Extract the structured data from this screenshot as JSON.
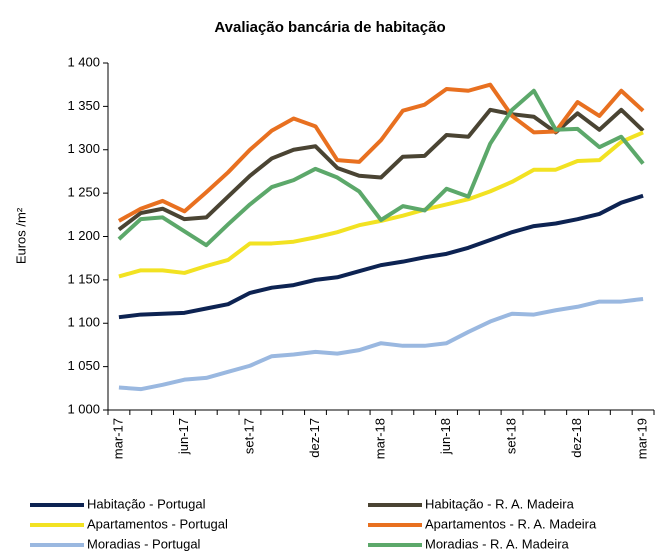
{
  "chart_data": {
    "type": "line",
    "title": "Avaliação bancária de habitação",
    "y_label": "Euros /m²",
    "categories": [
      "mar-17",
      null,
      null,
      "jun-17",
      null,
      null,
      "set-17",
      null,
      null,
      "dez-17",
      null,
      null,
      "mar-18",
      null,
      null,
      "jun-18",
      null,
      null,
      "set-18",
      null,
      null,
      "dez-18",
      null,
      null,
      "mar-19"
    ],
    "series": [
      {
        "name": "Habitação - Portugal",
        "color": "#0d2352",
        "values": [
          1107,
          1110,
          1111,
          1112,
          1117,
          1122,
          1135,
          1141,
          1144,
          1150,
          1153,
          1160,
          1167,
          1171,
          1176,
          1180,
          1187,
          1196,
          1205,
          1212,
          1215,
          1220,
          1226,
          1239,
          1247
        ]
      },
      {
        "name": "Habitação - R. A. Madeira",
        "color": "#4a4433",
        "values": [
          1208,
          1227,
          1232,
          1220,
          1222,
          1246,
          1270,
          1290,
          1300,
          1304,
          1279,
          1270,
          1268,
          1292,
          1293,
          1317,
          1315,
          1346,
          1341,
          1338,
          1320,
          1342,
          1323,
          1346,
          1322
        ]
      },
      {
        "name": "Apartamentos - Portugal",
        "color": "#f2e222",
        "values": [
          1154,
          1161,
          1161,
          1158,
          1166,
          1173,
          1192,
          1192,
          1194,
          1199,
          1205,
          1213,
          1218,
          1224,
          1231,
          1237,
          1243,
          1252,
          1263,
          1277,
          1277,
          1287,
          1288,
          1309,
          1320
        ]
      },
      {
        "name": "Apartamentos - R. A. Madeira",
        "color": "#e87020",
        "values": [
          1218,
          1232,
          1241,
          1229,
          1251,
          1274,
          1300,
          1322,
          1336,
          1327,
          1288,
          1286,
          1311,
          1345,
          1352,
          1370,
          1368,
          1375,
          1339,
          1320,
          1321,
          1355,
          1339,
          1368,
          1345
        ]
      },
      {
        "name": "Moradias - Portugal",
        "color": "#9ab8e0",
        "values": [
          1026,
          1024,
          1029,
          1035,
          1037,
          1044,
          1051,
          1062,
          1064,
          1067,
          1065,
          1069,
          1077,
          1074,
          1074,
          1077,
          1090,
          1102,
          1111,
          1110,
          1115,
          1119,
          1125,
          1125,
          1128
        ]
      },
      {
        "name": "Moradias - R. A. Madeira",
        "color": "#5ca86a",
        "values": [
          1197,
          1220,
          1222,
          1206,
          1190,
          1214,
          1237,
          1257,
          1265,
          1278,
          1268,
          1252,
          1219,
          1235,
          1230,
          1255,
          1246,
          1307,
          1346,
          1368,
          1323,
          1324,
          1303,
          1315,
          1284
        ]
      }
    ],
    "ylim": [
      1000,
      1400
    ],
    "yticks": [
      {
        "value": 1000,
        "label": "1 000"
      },
      {
        "value": 1050,
        "label": "1 050"
      },
      {
        "value": 1100,
        "label": "1 100"
      },
      {
        "value": 1150,
        "label": "1 150"
      },
      {
        "value": 1200,
        "label": "1 200"
      },
      {
        "value": 1250,
        "label": "1 250"
      },
      {
        "value": 1300,
        "label": "1 300"
      },
      {
        "value": 1350,
        "label": "1 350"
      },
      {
        "value": 1400,
        "label": "1 400"
      }
    ],
    "grid": false,
    "legend": "bottom"
  }
}
